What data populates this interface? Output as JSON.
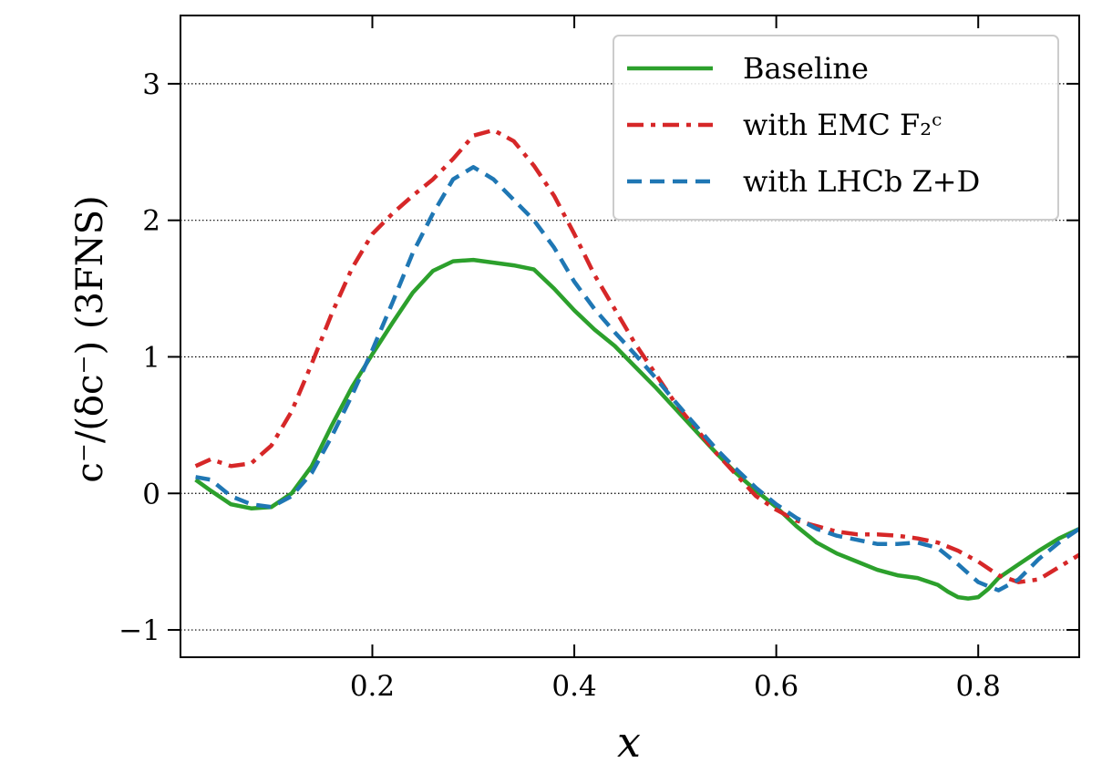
{
  "chart_data": {
    "type": "line",
    "title": "",
    "xlabel": "x",
    "ylabel": "c⁻/(δc⁻) (3FNS)",
    "xlim": [
      0.01,
      0.9
    ],
    "ylim": [
      -1.2,
      3.5
    ],
    "xticks": [
      0.2,
      0.4,
      0.6,
      0.8
    ],
    "xtick_labels": [
      "0.2",
      "0.4",
      "0.6",
      "0.8"
    ],
    "yticks": [
      -1,
      0,
      1,
      2,
      3
    ],
    "ytick_labels": [
      "−1",
      "0",
      "1",
      "2",
      "3"
    ],
    "grid": "horizontal dotted at y ticks",
    "legend_position": "top-right",
    "series": [
      {
        "name": "Baseline",
        "color": "#2ca02c",
        "style": "solid",
        "x": [
          0.025,
          0.04,
          0.06,
          0.08,
          0.1,
          0.12,
          0.14,
          0.16,
          0.18,
          0.2,
          0.22,
          0.24,
          0.26,
          0.28,
          0.3,
          0.32,
          0.34,
          0.36,
          0.38,
          0.4,
          0.42,
          0.44,
          0.46,
          0.48,
          0.5,
          0.52,
          0.54,
          0.56,
          0.58,
          0.6,
          0.62,
          0.64,
          0.66,
          0.68,
          0.7,
          0.72,
          0.74,
          0.76,
          0.77,
          0.78,
          0.79,
          0.8,
          0.81,
          0.82,
          0.84,
          0.86,
          0.88,
          0.9
        ],
        "values": [
          0.1,
          0.02,
          -0.08,
          -0.11,
          -0.1,
          0.0,
          0.2,
          0.5,
          0.78,
          1.02,
          1.25,
          1.47,
          1.63,
          1.7,
          1.71,
          1.69,
          1.67,
          1.64,
          1.5,
          1.34,
          1.2,
          1.08,
          0.93,
          0.78,
          0.62,
          0.46,
          0.3,
          0.15,
          0.02,
          -0.1,
          -0.24,
          -0.36,
          -0.44,
          -0.5,
          -0.56,
          -0.6,
          -0.62,
          -0.67,
          -0.72,
          -0.76,
          -0.77,
          -0.76,
          -0.7,
          -0.62,
          -0.52,
          -0.42,
          -0.33,
          -0.26
        ]
      },
      {
        "name": "with EMC F₂ᶜ",
        "color": "#d62728",
        "style": "dashdot",
        "x": [
          0.025,
          0.04,
          0.06,
          0.08,
          0.1,
          0.12,
          0.14,
          0.16,
          0.18,
          0.2,
          0.22,
          0.24,
          0.26,
          0.28,
          0.3,
          0.32,
          0.34,
          0.36,
          0.38,
          0.4,
          0.42,
          0.44,
          0.46,
          0.48,
          0.5,
          0.52,
          0.54,
          0.56,
          0.58,
          0.6,
          0.62,
          0.64,
          0.66,
          0.68,
          0.7,
          0.72,
          0.74,
          0.76,
          0.78,
          0.8,
          0.82,
          0.84,
          0.86,
          0.88,
          0.9
        ],
        "values": [
          0.2,
          0.25,
          0.2,
          0.22,
          0.35,
          0.6,
          0.95,
          1.32,
          1.65,
          1.9,
          2.05,
          2.18,
          2.3,
          2.45,
          2.62,
          2.66,
          2.58,
          2.4,
          2.18,
          1.9,
          1.6,
          1.35,
          1.1,
          0.88,
          0.66,
          0.48,
          0.3,
          0.14,
          -0.02,
          -0.12,
          -0.2,
          -0.24,
          -0.28,
          -0.3,
          -0.3,
          -0.31,
          -0.33,
          -0.36,
          -0.42,
          -0.5,
          -0.6,
          -0.65,
          -0.63,
          -0.54,
          -0.45
        ]
      },
      {
        "name": "with LHCb Z+D",
        "color": "#1f77b4",
        "style": "dashed",
        "x": [
          0.025,
          0.04,
          0.06,
          0.08,
          0.1,
          0.12,
          0.14,
          0.16,
          0.18,
          0.2,
          0.22,
          0.24,
          0.26,
          0.28,
          0.3,
          0.32,
          0.34,
          0.36,
          0.38,
          0.4,
          0.42,
          0.44,
          0.46,
          0.48,
          0.5,
          0.52,
          0.54,
          0.56,
          0.58,
          0.6,
          0.62,
          0.64,
          0.66,
          0.68,
          0.7,
          0.72,
          0.74,
          0.76,
          0.78,
          0.8,
          0.82,
          0.84,
          0.86,
          0.88,
          0.9
        ],
        "values": [
          0.12,
          0.1,
          -0.02,
          -0.08,
          -0.1,
          -0.02,
          0.15,
          0.42,
          0.72,
          1.05,
          1.4,
          1.76,
          2.05,
          2.3,
          2.39,
          2.3,
          2.15,
          2.0,
          1.8,
          1.55,
          1.35,
          1.18,
          1.02,
          0.85,
          0.67,
          0.5,
          0.33,
          0.18,
          0.04,
          -0.08,
          -0.18,
          -0.26,
          -0.31,
          -0.34,
          -0.37,
          -0.37,
          -0.36,
          -0.4,
          -0.52,
          -0.65,
          -0.71,
          -0.63,
          -0.48,
          -0.36,
          -0.26
        ]
      }
    ]
  }
}
